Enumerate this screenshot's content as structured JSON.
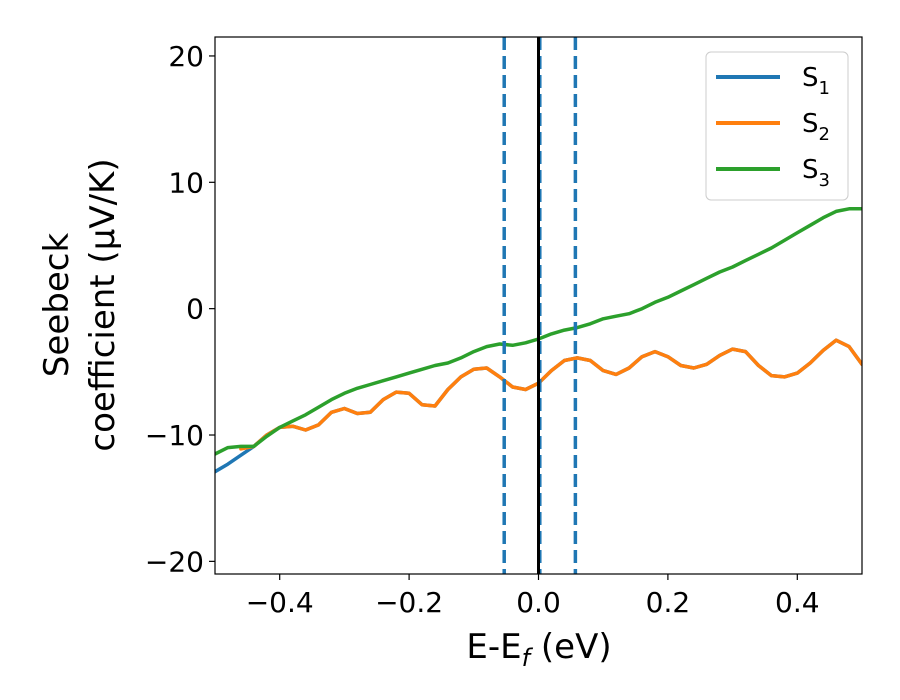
{
  "chart_data": {
    "type": "line",
    "title": "",
    "xlabel": {
      "main": "E-E",
      "sub": "f",
      "tail": " (eV)"
    },
    "ylabel": {
      "line1": "Seebeck",
      "line2": "coefficient  (μV/K)"
    },
    "xlim": [
      -0.5,
      0.5
    ],
    "ylim": [
      -21,
      21.5
    ],
    "x_ticks": [
      -0.4,
      -0.2,
      0.0,
      0.2,
      0.4
    ],
    "x_tick_labels": [
      "−0.4",
      "−0.2",
      "0.0",
      "0.2",
      "0.4"
    ],
    "y_ticks": [
      -20,
      -10,
      0,
      10,
      20
    ],
    "y_tick_labels": [
      "−20",
      "−10",
      "0",
      "10",
      "20"
    ],
    "grid": false,
    "legend_position": "top-right",
    "series": [
      {
        "name": "S",
        "sub": "1",
        "color": "#1f77b4",
        "x": [
          -0.5,
          -0.48,
          -0.46,
          -0.44,
          -0.42,
          -0.4,
          -0.38,
          -0.36,
          -0.34,
          -0.32,
          -0.3,
          -0.28,
          -0.26,
          -0.24,
          -0.22,
          -0.2,
          -0.18,
          -0.16,
          -0.14,
          -0.12,
          -0.1,
          -0.08,
          -0.06,
          -0.04,
          -0.02,
          0.0,
          0.02,
          0.04,
          0.06,
          0.08,
          0.1,
          0.12,
          0.14,
          0.16,
          0.18,
          0.2,
          0.22,
          0.24,
          0.26,
          0.28,
          0.3,
          0.32,
          0.34,
          0.36,
          0.38,
          0.4,
          0.42,
          0.44,
          0.46,
          0.48,
          0.5
        ],
        "y": [
          -12.9,
          -12.3,
          -11.6,
          -10.9,
          -10.0,
          -9.4,
          -9.3,
          -9.6,
          -9.2,
          -8.2,
          -7.9,
          -8.3,
          -8.2,
          -7.2,
          -6.6,
          -6.7,
          -7.6,
          -7.7,
          -6.4,
          -5.4,
          -4.8,
          -4.7,
          -5.4,
          -6.2,
          -6.4,
          -5.9,
          -4.9,
          -4.1,
          -3.9,
          -4.1,
          -4.9,
          -5.2,
          -4.7,
          -3.8,
          -3.4,
          -3.8,
          -4.5,
          -4.7,
          -4.4,
          -3.7,
          -3.2,
          -3.4,
          -4.5,
          -5.3,
          -5.4,
          -5.1,
          -4.3,
          -3.3,
          -2.5,
          -3.0,
          -4.4
        ]
      },
      {
        "name": "S",
        "sub": "2",
        "color": "#ff7f0e",
        "x": [
          -0.46,
          -0.44,
          -0.42,
          -0.4,
          -0.38,
          -0.36,
          -0.34,
          -0.32,
          -0.3,
          -0.28,
          -0.26,
          -0.24,
          -0.22,
          -0.2,
          -0.18,
          -0.16,
          -0.14,
          -0.12,
          -0.1,
          -0.08,
          -0.06,
          -0.04,
          -0.02,
          0.0,
          0.02,
          0.04,
          0.06,
          0.08,
          0.1,
          0.12,
          0.14,
          0.16,
          0.18,
          0.2,
          0.22,
          0.24,
          0.26,
          0.28,
          0.3,
          0.32,
          0.34,
          0.36,
          0.38,
          0.4,
          0.42,
          0.44,
          0.46,
          0.48,
          0.5
        ],
        "y": [
          -11.1,
          -10.9,
          -10.0,
          -9.4,
          -9.3,
          -9.6,
          -9.2,
          -8.2,
          -7.9,
          -8.3,
          -8.2,
          -7.2,
          -6.6,
          -6.7,
          -7.6,
          -7.7,
          -6.4,
          -5.4,
          -4.8,
          -4.7,
          -5.4,
          -6.2,
          -6.4,
          -5.9,
          -4.9,
          -4.1,
          -3.9,
          -4.1,
          -4.9,
          -5.2,
          -4.7,
          -3.8,
          -3.4,
          -3.8,
          -4.5,
          -4.7,
          -4.4,
          -3.7,
          -3.2,
          -3.4,
          -4.5,
          -5.3,
          -5.4,
          -5.1,
          -4.3,
          -3.3,
          -2.5,
          -3.0,
          -4.4
        ]
      },
      {
        "name": "S",
        "sub": "3",
        "color": "#2ca02c",
        "x": [
          -0.5,
          -0.48,
          -0.46,
          -0.44,
          -0.42,
          -0.4,
          -0.38,
          -0.36,
          -0.34,
          -0.32,
          -0.3,
          -0.28,
          -0.26,
          -0.24,
          -0.22,
          -0.2,
          -0.18,
          -0.16,
          -0.14,
          -0.12,
          -0.1,
          -0.08,
          -0.06,
          -0.04,
          -0.02,
          0.0,
          0.02,
          0.04,
          0.06,
          0.08,
          0.1,
          0.12,
          0.14,
          0.16,
          0.18,
          0.2,
          0.22,
          0.24,
          0.26,
          0.28,
          0.3,
          0.32,
          0.34,
          0.36,
          0.38,
          0.4,
          0.42,
          0.44,
          0.46,
          0.48,
          0.5
        ],
        "y": [
          -11.5,
          -11.0,
          -10.9,
          -10.9,
          -10.1,
          -9.4,
          -8.9,
          -8.4,
          -7.8,
          -7.2,
          -6.7,
          -6.3,
          -6.0,
          -5.7,
          -5.4,
          -5.1,
          -4.8,
          -4.5,
          -4.3,
          -3.9,
          -3.4,
          -3.0,
          -2.8,
          -2.9,
          -2.7,
          -2.4,
          -2.0,
          -1.7,
          -1.5,
          -1.2,
          -0.8,
          -0.6,
          -0.4,
          0.0,
          0.5,
          0.9,
          1.4,
          1.9,
          2.4,
          2.9,
          3.3,
          3.8,
          4.3,
          4.8,
          5.4,
          6.0,
          6.6,
          7.2,
          7.7,
          7.9,
          7.9
        ]
      }
    ],
    "vlines": [
      {
        "x": -0.053,
        "color": "#1f77b4",
        "style": "dashed"
      },
      {
        "x": 0.002,
        "color": "#1f77b4",
        "style": "dashed"
      },
      {
        "x": 0.057,
        "color": "#1f77b4",
        "style": "dashed"
      },
      {
        "x": 0.0,
        "color": "#000000",
        "style": "solid"
      }
    ]
  }
}
